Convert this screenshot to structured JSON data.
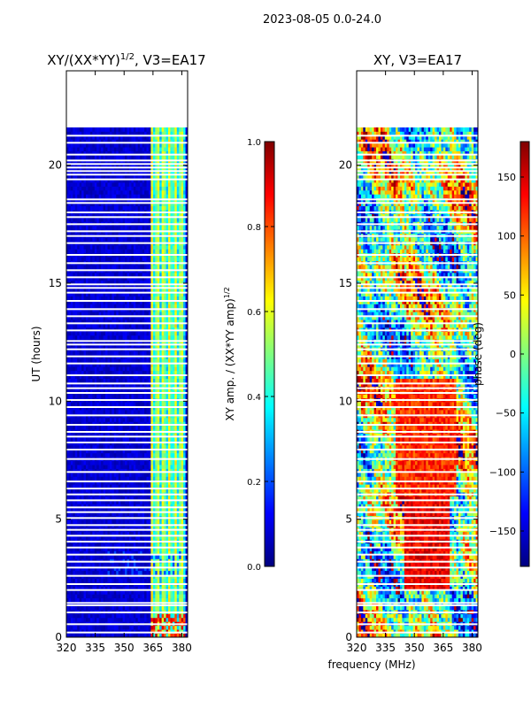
{
  "figure_title": "2023-08-05 0.0-24.0",
  "chart_data": [
    {
      "type": "heatmap",
      "panel": "amplitude",
      "title_main": "XY/(XX*YY)",
      "title_exp": "1/2",
      "title_tail": ", V3=EA17",
      "xlabel": "",
      "ylabel": "UT (hours)",
      "xlim": [
        320,
        383
      ],
      "ylim": [
        0,
        24
      ],
      "xticks": [
        320,
        335,
        350,
        365,
        380
      ],
      "yticks": [
        0,
        5,
        10,
        15,
        20
      ],
      "data_time_range": [
        0.0,
        21.6
      ],
      "bright_channel_range": [
        364,
        382
      ],
      "colorbar": {
        "label_main": "XY amp. / (XX*YY amp)",
        "label_exp": "1/2",
        "range": [
          0.0,
          1.0
        ],
        "ticks": [
          "0.0",
          "0.2",
          "0.4",
          "0.6",
          "0.8",
          "1.0"
        ]
      },
      "colormap": [
        "#00007f",
        "#0000ff",
        "#007fff",
        "#00ffff",
        "#7fff7f",
        "#ffff00",
        "#ff7f00",
        "#ff0000",
        "#7f0000"
      ]
    },
    {
      "type": "heatmap",
      "panel": "phase",
      "title": "XY, V3=EA17",
      "xlabel": "frequency (MHz)",
      "ylabel": "",
      "xlim": [
        320,
        383
      ],
      "ylim": [
        0,
        24
      ],
      "xticks": [
        320,
        335,
        350,
        365,
        380
      ],
      "yticks": [
        0,
        5,
        10,
        15,
        20
      ],
      "data_time_range": [
        0.0,
        21.6
      ],
      "colorbar": {
        "label": "phase (deg)",
        "range": [
          -180,
          180
        ],
        "ticks": [
          "150",
          "100",
          "50",
          "0",
          "−50",
          "−100",
          "−150"
        ],
        "tick_values": [
          150,
          100,
          50,
          0,
          -50,
          -100,
          -150
        ]
      },
      "colormap": [
        "#00007f",
        "#0000ff",
        "#007fff",
        "#00ffff",
        "#7fff7f",
        "#ffff00",
        "#ff7f00",
        "#ff0000",
        "#7f0000"
      ]
    }
  ],
  "gap_hours": [
    21.25,
    20.95,
    20.45,
    20.2,
    20.05,
    19.9,
    19.75,
    19.6,
    19.4,
    18.55,
    18.4,
    18.0,
    17.8,
    17.5,
    17.2,
    17.0,
    16.7,
    16.2,
    15.85,
    15.55,
    15.25,
    14.95,
    14.8,
    14.6,
    14.25,
    13.9,
    13.6,
    13.3,
    13.0,
    12.55,
    12.4,
    12.2,
    11.9,
    11.6,
    11.1,
    10.75,
    10.55,
    10.35,
    10.05,
    9.75,
    9.4,
    9.0,
    8.7,
    8.5,
    8.25,
    7.95,
    7.55,
    7.0,
    6.6,
    6.3,
    6.05,
    5.8,
    5.5,
    5.3,
    5.05,
    4.75,
    4.55,
    4.3,
    4.05,
    3.8,
    3.5,
    3.2,
    2.95,
    2.6,
    2.25,
    2.0,
    1.45,
    1.35,
    1.05,
    0.55,
    0.2
  ]
}
